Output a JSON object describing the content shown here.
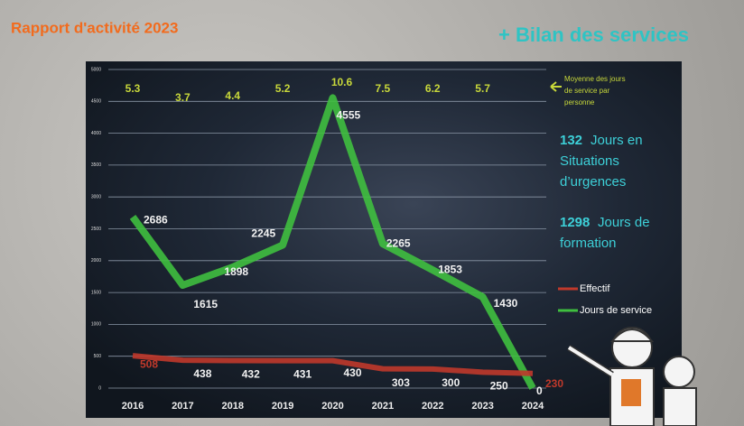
{
  "chart_data": {
    "type": "line",
    "title": "Rapport d'activité 2023",
    "subtitle": "+ Bilan des services",
    "categories": [
      "2016",
      "2017",
      "2018",
      "2019",
      "2020",
      "2021",
      "2022",
      "2023",
      "2024"
    ],
    "series": [
      {
        "name": "Effectif",
        "color": "#c0392b",
        "values": [
          508,
          438,
          432,
          431,
          430,
          303,
          300,
          250,
          230
        ]
      },
      {
        "name": "Jours de service",
        "color": "#3fbf3f",
        "values": [
          2686,
          1615,
          1898,
          2245,
          4555,
          2265,
          1853,
          1430,
          0
        ]
      }
    ],
    "averages": {
      "label": "Moyenne des jours de service par personne",
      "values": [
        5.3,
        3.7,
        4.4,
        5.2,
        10.6,
        7.5,
        6.2,
        5.7
      ]
    },
    "notes": [
      {
        "value": 132,
        "text": "Jours en Situations d’urgences"
      },
      {
        "value": 1298,
        "text": "Jours de formation"
      }
    ],
    "ylim": [
      0,
      5000
    ],
    "yticks": [
      0,
      500,
      1000,
      1500,
      2000,
      2500,
      3000,
      3500,
      4000,
      4500,
      5000
    ],
    "grid": true
  }
}
